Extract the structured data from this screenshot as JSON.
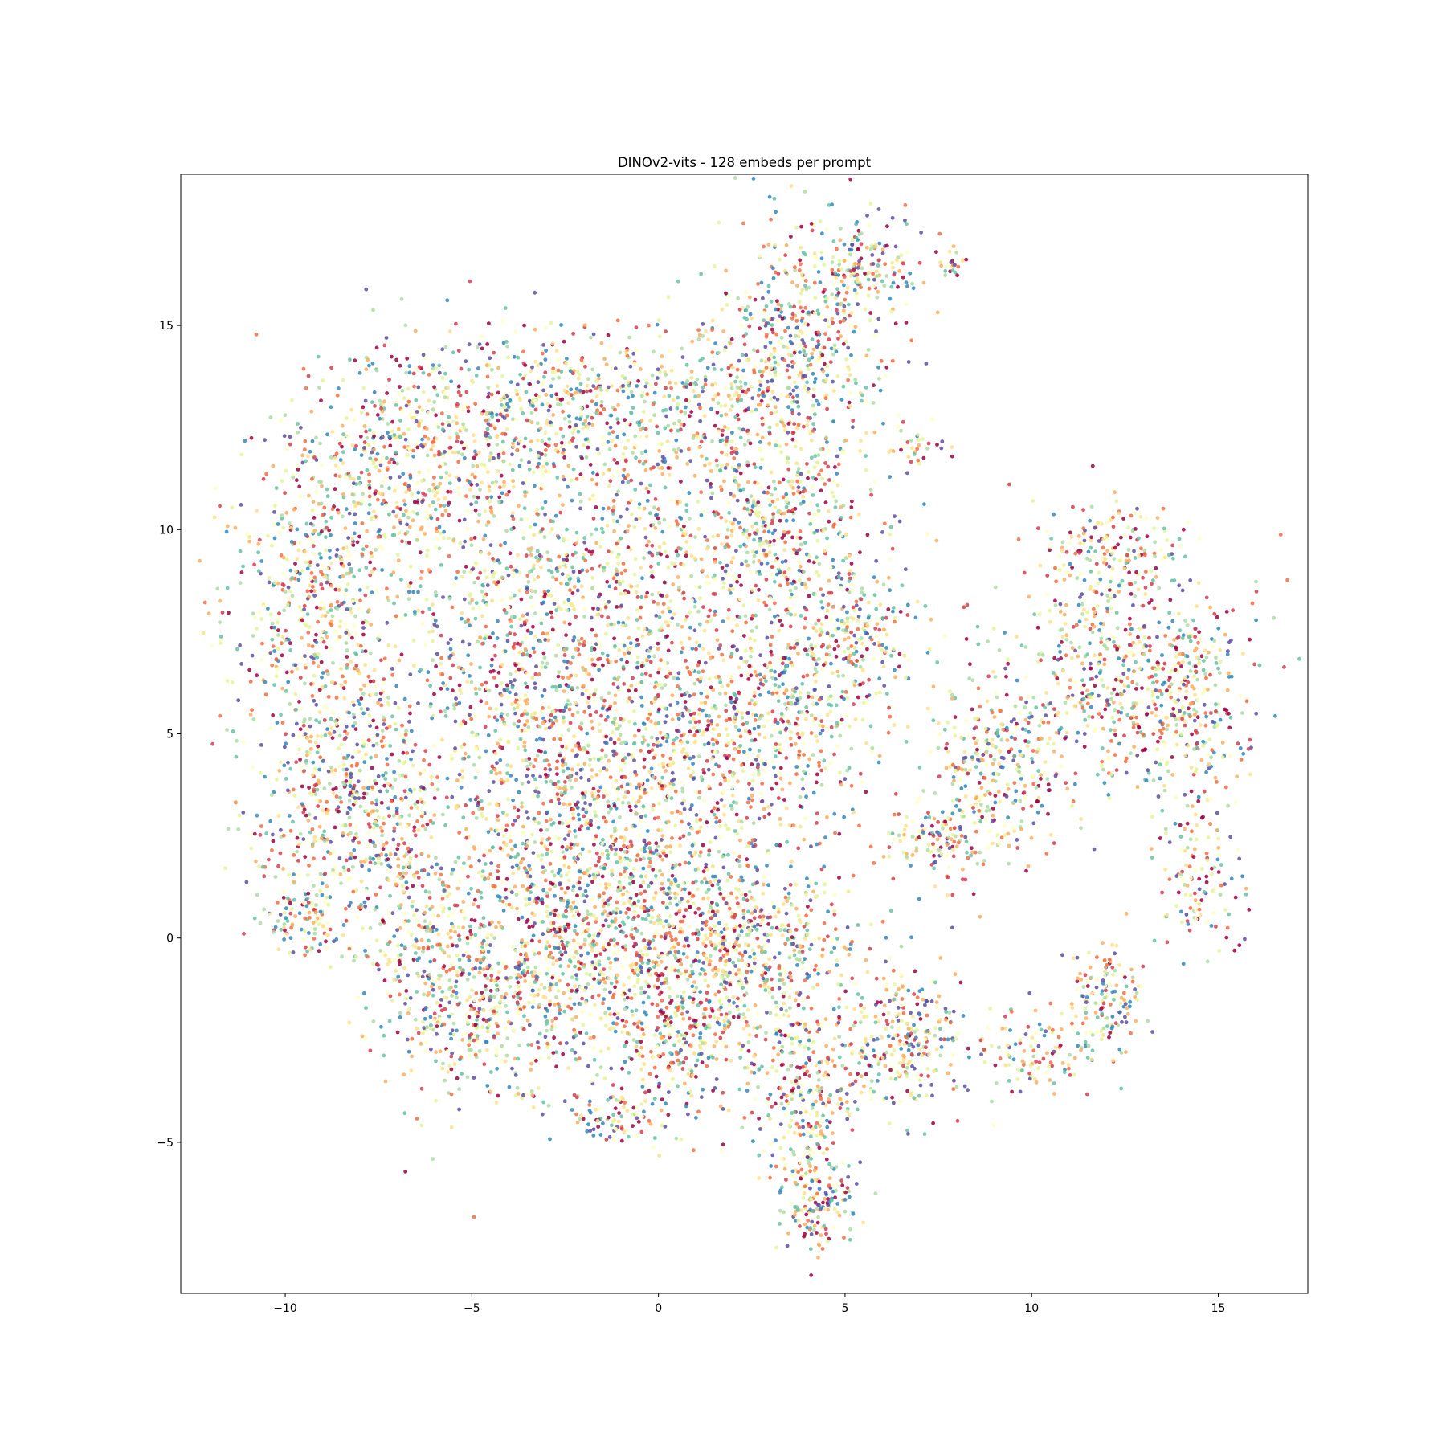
{
  "chart_data": {
    "type": "scatter",
    "title": "DINOv2-vits - 128 embeds per prompt",
    "xlabel": "",
    "ylabel": "",
    "xlim": [
      -12.8,
      17.4
    ],
    "ylim": [
      -8.7,
      18.7
    ],
    "xticks": [
      -10,
      -5,
      0,
      5,
      10,
      15
    ],
    "yticks": [
      -5,
      0,
      5,
      10,
      15
    ],
    "xtick_labels": [
      "−10",
      "−5",
      "0",
      "5",
      "10",
      "15"
    ],
    "ytick_labels": [
      "−5",
      "0",
      "5",
      "10",
      "15"
    ],
    "grid": false,
    "legend": "none",
    "marker": "circle",
    "colormap": [
      "#9e0142",
      "#d53e4f",
      "#f46d43",
      "#fdae61",
      "#fee08b",
      "#ffffbf",
      "#e6f598",
      "#abdda4",
      "#66c2a5",
      "#3288bd",
      "#5e4fa2"
    ],
    "series_regions": [
      {
        "cx": -9.0,
        "cy": 8.0,
        "sx": 1.3,
        "sy": 2.5,
        "n": 700
      },
      {
        "cx": -6.5,
        "cy": 12.0,
        "sx": 1.5,
        "sy": 1.3,
        "n": 400
      },
      {
        "cx": -3.0,
        "cy": 13.0,
        "sx": 1.8,
        "sy": 1.0,
        "n": 450
      },
      {
        "cx": 1.5,
        "cy": 13.0,
        "sx": 1.3,
        "sy": 1.2,
        "n": 300
      },
      {
        "cx": 4.0,
        "cy": 14.5,
        "sx": 1.2,
        "sy": 1.5,
        "n": 450
      },
      {
        "cx": 5.5,
        "cy": 16.5,
        "sx": 0.8,
        "sy": 0.6,
        "n": 150
      },
      {
        "cx": -4.0,
        "cy": 8.0,
        "sx": 2.0,
        "sy": 2.0,
        "n": 600
      },
      {
        "cx": 0.0,
        "cy": 9.5,
        "sx": 2.0,
        "sy": 1.5,
        "n": 450
      },
      {
        "cx": 3.5,
        "cy": 10.0,
        "sx": 1.3,
        "sy": 1.2,
        "n": 350
      },
      {
        "cx": -8.5,
        "cy": 3.0,
        "sx": 1.2,
        "sy": 1.5,
        "n": 400
      },
      {
        "cx": -6.5,
        "cy": 1.0,
        "sx": 1.0,
        "sy": 2.0,
        "n": 350
      },
      {
        "cx": -3.0,
        "cy": 4.0,
        "sx": 1.5,
        "sy": 2.0,
        "n": 500
      },
      {
        "cx": 0.5,
        "cy": 5.0,
        "sx": 2.0,
        "sy": 1.6,
        "n": 600
      },
      {
        "cx": 3.5,
        "cy": 6.0,
        "sx": 1.3,
        "sy": 1.5,
        "n": 400
      },
      {
        "cx": 5.5,
        "cy": 7.5,
        "sx": 0.8,
        "sy": 0.8,
        "n": 150
      },
      {
        "cx": -5.0,
        "cy": -1.5,
        "sx": 1.0,
        "sy": 1.2,
        "n": 350
      },
      {
        "cx": -2.5,
        "cy": -0.5,
        "sx": 1.3,
        "sy": 1.5,
        "n": 500
      },
      {
        "cx": 0.8,
        "cy": -2.0,
        "sx": 1.2,
        "sy": 1.2,
        "n": 450
      },
      {
        "cx": 3.0,
        "cy": -0.5,
        "sx": 1.3,
        "sy": 1.3,
        "n": 350
      },
      {
        "cx": -1.0,
        "cy": 2.0,
        "sx": 1.8,
        "sy": 1.5,
        "n": 400
      },
      {
        "cx": 4.0,
        "cy": -4.0,
        "sx": 0.6,
        "sy": 1.2,
        "n": 250
      },
      {
        "cx": 4.2,
        "cy": -6.5,
        "sx": 0.6,
        "sy": 0.6,
        "n": 150
      },
      {
        "cx": 6.5,
        "cy": -2.5,
        "sx": 1.0,
        "sy": 0.8,
        "n": 300
      },
      {
        "cx": 10.0,
        "cy": -2.8,
        "sx": 0.7,
        "sy": 0.5,
        "n": 100
      },
      {
        "cx": 12.0,
        "cy": -1.5,
        "sx": 0.5,
        "sy": 0.8,
        "n": 150
      },
      {
        "cx": 14.5,
        "cy": 1.5,
        "sx": 0.6,
        "sy": 1.0,
        "n": 120
      },
      {
        "cx": 9.0,
        "cy": 4.0,
        "sx": 1.0,
        "sy": 1.2,
        "n": 300
      },
      {
        "cx": 7.5,
        "cy": 2.5,
        "sx": 0.7,
        "sy": 0.5,
        "n": 120
      },
      {
        "cx": 11.5,
        "cy": 6.5,
        "sx": 1.2,
        "sy": 1.5,
        "n": 350
      },
      {
        "cx": 14.0,
        "cy": 6.0,
        "sx": 1.0,
        "sy": 1.5,
        "n": 400
      },
      {
        "cx": 12.0,
        "cy": 9.5,
        "sx": 1.0,
        "sy": 0.6,
        "n": 150
      },
      {
        "cx": 7.0,
        "cy": 12.0,
        "sx": 0.4,
        "sy": 0.3,
        "n": 30
      },
      {
        "cx": 8.0,
        "cy": 16.5,
        "sx": 0.2,
        "sy": 0.2,
        "n": 20
      },
      {
        "cx": -9.5,
        "cy": 0.5,
        "sx": 0.5,
        "sy": 0.5,
        "n": 80
      },
      {
        "cx": -1.0,
        "cy": -4.5,
        "sx": 0.8,
        "sy": 0.3,
        "n": 80
      },
      {
        "cx": 1.0,
        "cy": 0.5,
        "sx": 1.5,
        "sy": 1.0,
        "n": 300
      }
    ]
  }
}
